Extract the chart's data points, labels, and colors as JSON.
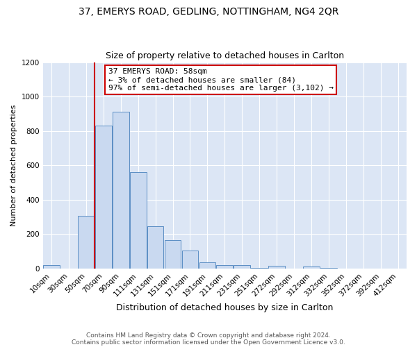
{
  "title": "37, EMERYS ROAD, GEDLING, NOTTINGHAM, NG4 2QR",
  "subtitle": "Size of property relative to detached houses in Carlton",
  "xlabel": "Distribution of detached houses by size in Carlton",
  "ylabel": "Number of detached properties",
  "bar_labels": [
    "10sqm",
    "30sqm",
    "50sqm",
    "70sqm",
    "90sqm",
    "111sqm",
    "131sqm",
    "151sqm",
    "171sqm",
    "191sqm",
    "211sqm",
    "231sqm",
    "251sqm",
    "272sqm",
    "292sqm",
    "312sqm",
    "332sqm",
    "352sqm",
    "372sqm",
    "392sqm",
    "412sqm"
  ],
  "bar_values": [
    20,
    0,
    305,
    830,
    910,
    560,
    245,
    165,
    103,
    38,
    18,
    18,
    5,
    15,
    0,
    10,
    5,
    0,
    0,
    0,
    0
  ],
  "bar_color": "#c9d9f0",
  "bar_edge_color": "#5b8ec4",
  "ylim": [
    0,
    1200
  ],
  "yticks": [
    0,
    200,
    400,
    600,
    800,
    1000,
    1200
  ],
  "vline_x": 2.5,
  "vline_color": "#cc0000",
  "annotation_title": "37 EMERYS ROAD: 58sqm",
  "annotation_line2": "← 3% of detached houses are smaller (84)",
  "annotation_line3": "97% of semi-detached houses are larger (3,102) →",
  "annotation_box_color": "#ffffff",
  "annotation_box_edge": "#cc0000",
  "footer1": "Contains HM Land Registry data © Crown copyright and database right 2024.",
  "footer2": "Contains public sector information licensed under the Open Government Licence v3.0.",
  "figure_background": "#ffffff",
  "plot_background": "#dce6f5",
  "grid_color": "#ffffff",
  "title_fontsize": 10,
  "subtitle_fontsize": 9,
  "ylabel_fontsize": 8,
  "xlabel_fontsize": 9,
  "tick_fontsize": 7.5,
  "footer_fontsize": 6.5,
  "annotation_fontsize": 8
}
